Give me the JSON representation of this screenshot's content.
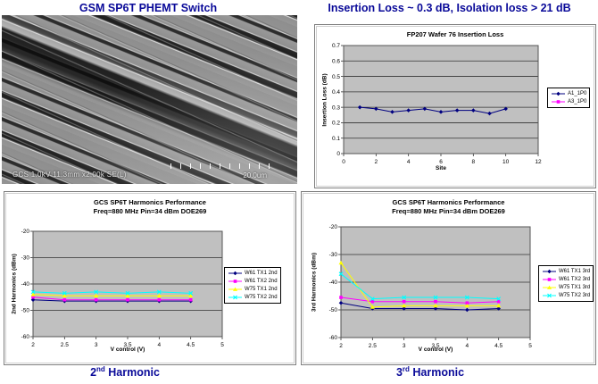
{
  "header_left": "GSM SP6T PHEMT Switch",
  "header_right": "Insertion Loss ~ 0.3 dB, Isolation loss > 21 dB",
  "sem": {
    "caption": "GCS 1.0kV 11.3mm x2.00k SE(L)",
    "scale_label": "20.0um"
  },
  "captions": {
    "second": {
      "base": "2",
      "sup": "nd",
      "rest": " Harmonic"
    },
    "third": {
      "base": "3",
      "sup": "rd",
      "rest": " Harmonic"
    }
  },
  "colors": {
    "header_text": "#0a0a99",
    "plot_bg": "#c0c0c0",
    "series_blue": "#000080",
    "series_magenta": "#ff00ff",
    "series_yellow": "#ffff00",
    "series_cyan": "#00ffff"
  },
  "chart_data": [
    {
      "id": "insertion-loss",
      "type": "line",
      "title": "FP207 Wafer 76 Insertion Loss",
      "xlabel": "Site",
      "ylabel": "Insertion Loss (dB)",
      "xlim": [
        0,
        12
      ],
      "ylim": [
        0,
        0.7
      ],
      "xticks": [
        0,
        2,
        4,
        6,
        8,
        10,
        12
      ],
      "yticks": [
        0,
        0.1,
        0.2,
        0.3,
        0.4,
        0.5,
        0.6,
        0.7
      ],
      "grid": "horizontal",
      "plot_bg": "#c0c0c0",
      "legend_position": "right",
      "series": [
        {
          "name": "A1_1P0",
          "color": "#000080",
          "marker": "diamond",
          "x": [
            1,
            2,
            3,
            4,
            5,
            6,
            7,
            8,
            9,
            10
          ],
          "values": [
            0.3,
            0.29,
            0.27,
            0.28,
            0.29,
            0.27,
            0.28,
            0.28,
            0.26,
            0.29
          ]
        },
        {
          "name": "A3_1P0",
          "color": "#ff00ff",
          "marker": "square",
          "x": [],
          "values": [],
          "note": "legend entry visible; line not separately visible (overlaps A1_1P0)"
        }
      ]
    },
    {
      "id": "harmonics-2nd",
      "type": "line",
      "title_line1": "GCS SP6T Harmonics Performance",
      "title_line2": "Freq=880 MHz Pin=34 dBm DOE269",
      "xlabel": "V control (V)",
      "ylabel": "2nd Harmonics (dBm)",
      "xlim": [
        2,
        5
      ],
      "ylim": [
        -60,
        -20
      ],
      "xticks": [
        2,
        2.5,
        3,
        3.5,
        4,
        4.5,
        5
      ],
      "yticks": [
        -20,
        -30,
        -40,
        -50,
        -60
      ],
      "grid": "horizontal",
      "plot_bg": "#c0c0c0",
      "legend_position": "right",
      "x": [
        2,
        2.5,
        3,
        3.5,
        4,
        4.5
      ],
      "series": [
        {
          "name": "W61 TX1 2nd",
          "color": "#000080",
          "marker": "diamond",
          "values": [
            -46,
            -46.5,
            -46.5,
            -46.5,
            -46.5,
            -46.5
          ]
        },
        {
          "name": "W61 TX2 2nd",
          "color": "#ff00ff",
          "marker": "square",
          "values": [
            -45,
            -46,
            -46,
            -46,
            -46,
            -46
          ]
        },
        {
          "name": "W75 TX1 2nd",
          "color": "#ffff00",
          "marker": "triangle",
          "values": [
            -44,
            -44.5,
            -44.5,
            -44.5,
            -44.5,
            -44.5
          ]
        },
        {
          "name": "W75 TX2 2nd",
          "color": "#00ffff",
          "marker": "x",
          "values": [
            -43,
            -43.5,
            -43,
            -43.5,
            -43,
            -43.5
          ]
        }
      ]
    },
    {
      "id": "harmonics-3rd",
      "type": "line",
      "title_line1": "GCS SP6T Harmonics Performance",
      "title_line2": "Freq=880 MHz Pin=34 dBm DOE269",
      "xlabel": "V control (V)",
      "ylabel": "3rd Harmonics (dBm)",
      "xlim": [
        2,
        5
      ],
      "ylim": [
        -60,
        -20
      ],
      "xticks": [
        2,
        2.5,
        3,
        3.5,
        4,
        4.5,
        5
      ],
      "yticks": [
        -20,
        -30,
        -40,
        -50,
        -60
      ],
      "grid": "horizontal",
      "plot_bg": "#c0c0c0",
      "legend_position": "right",
      "x": [
        2,
        2.5,
        3,
        3.5,
        4,
        4.5
      ],
      "series": [
        {
          "name": "W61 TX1 3rd",
          "color": "#000080",
          "marker": "diamond",
          "values": [
            -47.5,
            -49.5,
            -49.5,
            -49.5,
            -50,
            -49.5
          ]
        },
        {
          "name": "W61 TX2 3rd",
          "color": "#ff00ff",
          "marker": "square",
          "values": [
            -45.5,
            -47,
            -47,
            -47,
            -47.5,
            -47
          ]
        },
        {
          "name": "W75 TX1 3rd",
          "color": "#ffff00",
          "marker": "triangle",
          "values": [
            -33,
            -49,
            -48.5,
            -48.5,
            -48.5,
            -48.5
          ]
        },
        {
          "name": "W75 TX2 3rd",
          "color": "#00ffff",
          "marker": "x",
          "values": [
            -37,
            -46,
            -45.5,
            -45.5,
            -45.5,
            -46
          ]
        }
      ]
    }
  ]
}
